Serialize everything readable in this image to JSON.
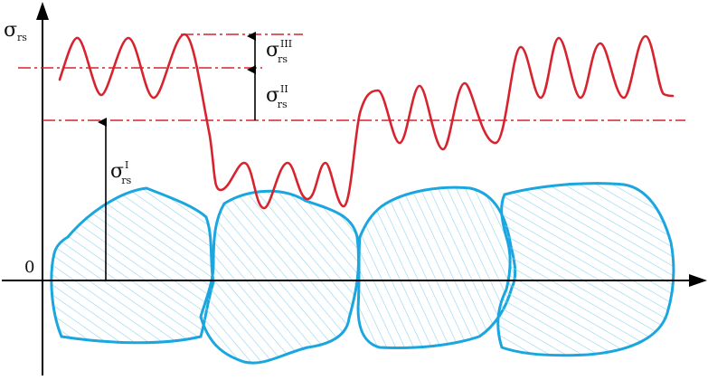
{
  "axes": {
    "y_label": "σ",
    "y_label_subscript": "rs",
    "origin_label": "0"
  },
  "levels": [
    {
      "symbol": "σ",
      "subscript": "rs",
      "superscript": "I"
    },
    {
      "symbol": "σ",
      "subscript": "rs",
      "superscript": "II"
    },
    {
      "symbol": "σ",
      "subscript": "rs",
      "superscript": "III"
    }
  ],
  "colors": {
    "stress_curve": "#d7232e",
    "grain_outline": "#1aa6df",
    "grain_hatch": "#8fd3ef",
    "axis": "#000000"
  }
}
